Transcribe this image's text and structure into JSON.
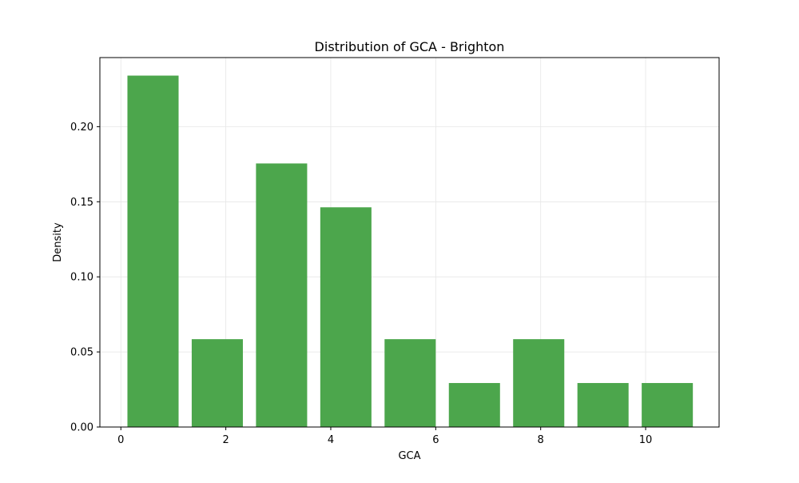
{
  "chart_data": {
    "type": "bar",
    "title": "Distribution of GCA - Brighton",
    "xlabel": "GCA",
    "ylabel": "Density",
    "xlim": [
      -0.4,
      11.4
    ],
    "ylim": [
      0,
      0.246
    ],
    "xticks": [
      0,
      2,
      4,
      6,
      8,
      10
    ],
    "xtick_labels": [
      "0",
      "2",
      "4",
      "6",
      "8",
      "10"
    ],
    "yticks": [
      0.0,
      0.05,
      0.1,
      0.15,
      0.2
    ],
    "ytick_labels": [
      "0.00",
      "0.05",
      "0.10",
      "0.15",
      "0.20"
    ],
    "grid": true,
    "bars": [
      {
        "x_start": 0.125,
        "x_end": 1.1,
        "value": 0.234
      },
      {
        "x_start": 1.35,
        "x_end": 2.325,
        "value": 0.0585
      },
      {
        "x_start": 2.575,
        "x_end": 3.55,
        "value": 0.1755
      },
      {
        "x_start": 3.8,
        "x_end": 4.775,
        "value": 0.1463
      },
      {
        "x_start": 5.025,
        "x_end": 6.0,
        "value": 0.0585
      },
      {
        "x_start": 6.25,
        "x_end": 7.225,
        "value": 0.0293
      },
      {
        "x_start": 7.475,
        "x_end": 8.45,
        "value": 0.0585
      },
      {
        "x_start": 8.7,
        "x_end": 9.675,
        "value": 0.0293
      },
      {
        "x_start": 9.925,
        "x_end": 10.9,
        "value": 0.0293
      }
    ],
    "bar_color": "#4ca64c",
    "grid_color": "#e6e6e6"
  }
}
